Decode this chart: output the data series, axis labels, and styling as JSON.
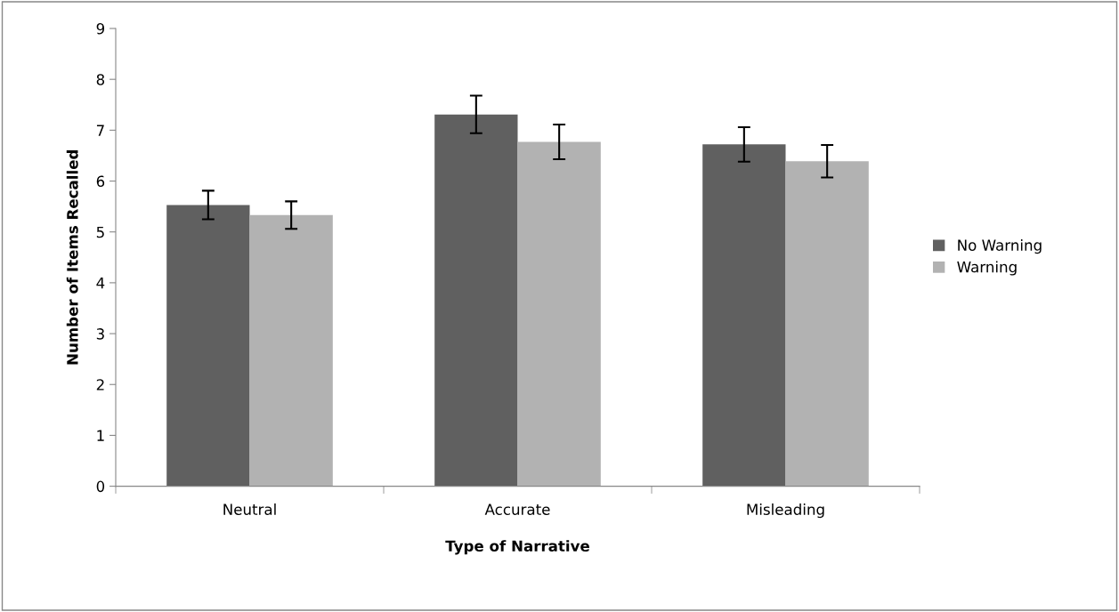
{
  "chart_data": {
    "type": "bar",
    "xlabel": "Type of Narrative",
    "ylabel": "Number of Items Recalled",
    "categories": [
      "Neutral",
      "Accurate",
      "Misleading"
    ],
    "series": [
      {
        "name": "No Warning",
        "color": "#606060",
        "values": [
          5.53,
          7.31,
          6.72
        ],
        "errors": [
          0.28,
          0.37,
          0.34
        ]
      },
      {
        "name": "Warning",
        "color": "#b2b2b2",
        "values": [
          5.33,
          6.77,
          6.39
        ],
        "errors": [
          0.27,
          0.34,
          0.32
        ]
      }
    ],
    "ylim": [
      0,
      9
    ],
    "yticks": [
      0,
      1,
      2,
      3,
      4,
      5,
      6,
      7,
      8,
      9
    ],
    "grid": false,
    "legend": "right"
  }
}
